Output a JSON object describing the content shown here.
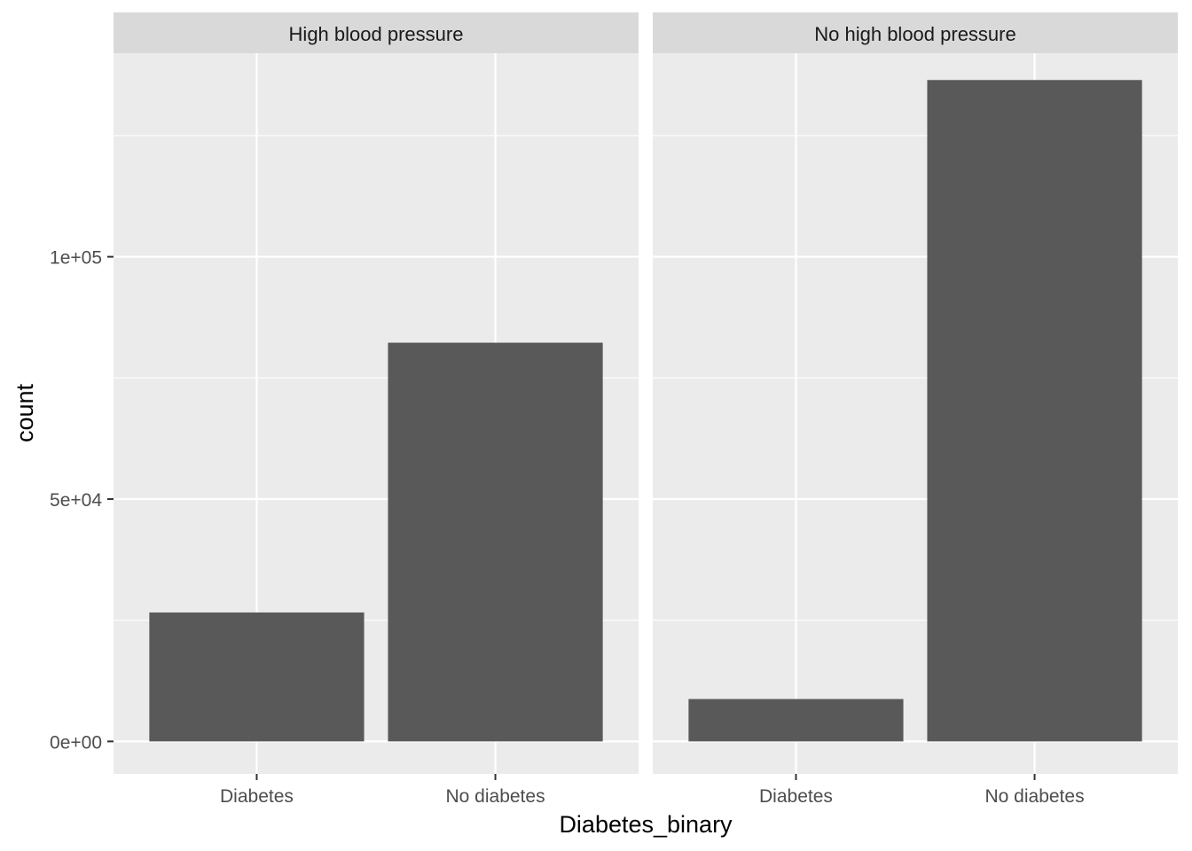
{
  "chart_data": {
    "type": "bar",
    "facet_variable_values": [
      "High blood pressure",
      "No high blood pressure"
    ],
    "categories": [
      "Diabetes",
      "No diabetes"
    ],
    "panels": [
      {
        "strip_label": "High blood pressure",
        "values": [
          26604,
          82267
        ]
      },
      {
        "strip_label": "No high blood pressure",
        "values": [
          8742,
          136467
        ]
      }
    ],
    "xlabel": "Diabetes_binary",
    "ylabel": "count",
    "ylim": [
      -6700,
      142000
    ],
    "y_ticks": [
      0,
      50000,
      100000
    ],
    "y_tick_labels": [
      "0e+00",
      "5e+04",
      "1e+05"
    ],
    "grid": true,
    "legend": "none"
  },
  "colors": {
    "bar": "#595959",
    "panel_background": "#ebebeb",
    "strip_background": "#d9d9d9",
    "grid_line": "#ffffff",
    "tick_mark": "#333333"
  }
}
